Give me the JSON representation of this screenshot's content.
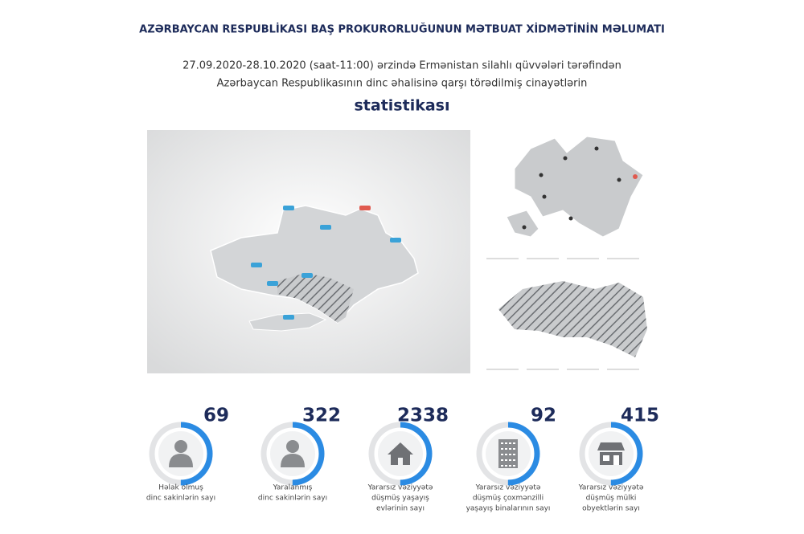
{
  "header": {
    "title": "AZƏRBAYCAN RESPUBLİKASI BAŞ PROKURORLUĞUNUN MƏTBUAT XİDMƏTİNİN MƏLUMATI",
    "subtitle": [
      "27.09.2020-28.10.2020 (saat-11:00) ərzində Ermənistan silahlı qüvvələri tərəfindən",
      "Azərbaycan Respublikasının dinc əhalisinə qarşı törədilmiş cinayətlərin"
    ],
    "emphasis": "statistikası"
  },
  "stats": [
    {
      "value": 69,
      "label": [
        "Həlak olmuş",
        "dinc sakinlərin sayı"
      ]
    },
    {
      "value": 322,
      "label": [
        "Yaralanmış",
        "dinc sakinlərin sayı"
      ]
    },
    {
      "value": 2338,
      "label": [
        "Yararsız vəziyyətə",
        "düşmüş yaşayış",
        "evlərinin sayı"
      ]
    },
    {
      "value": 92,
      "label": [
        "Yararsız vəziyyətə",
        "düşmüş çoxmənzilli",
        "yaşayış binalarının sayı"
      ]
    },
    {
      "value": 415,
      "label": [
        "Yararsız vəziyyətə",
        "düşmüş mülki",
        "obyektlərin sayı"
      ]
    }
  ]
}
